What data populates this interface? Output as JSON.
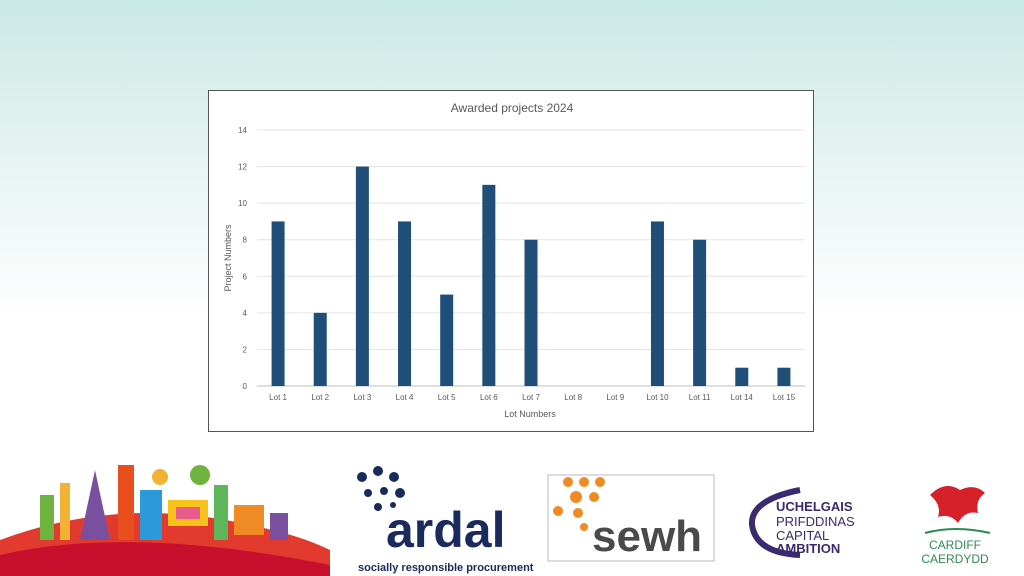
{
  "chart_data": {
    "type": "bar",
    "title": "Awarded projects 2024",
    "xlabel": "Lot Numbers",
    "ylabel": "Project Numbers",
    "categories": [
      "Lot  1",
      "Lot  2",
      "Lot  3",
      "Lot  4",
      "Lot  5",
      "Lot  6",
      "Lot 7",
      "Lot  8",
      "Lot  9",
      "Lot 10",
      "Lot 11",
      "Lot 14",
      "Lot 15"
    ],
    "values": [
      9,
      4,
      12,
      9,
      5,
      11,
      8,
      0,
      0,
      9,
      8,
      1,
      1
    ],
    "ylim": [
      0,
      14
    ],
    "yticks": [
      0,
      2,
      4,
      6,
      8,
      10,
      12,
      14
    ],
    "grid": true,
    "bar_color": "#1f4e79"
  },
  "logos": {
    "ardal_name": "ardal",
    "ardal_tagline": "socially responsible procurement",
    "sewh_name": "sewh",
    "ccr_line1": "UCHELGAIS",
    "ccr_line2": "PRIFDDINAS",
    "ccr_line3": "CAPITAL",
    "ccr_line4": "AMBITION",
    "cardiff_line1": "CARDIFF",
    "cardiff_line2": "CAERDYDD"
  },
  "colors": {
    "ardal_navy": "#1b2a5c",
    "sewh_orange": "#f08a24",
    "ccr_purple": "#3a2a6e",
    "cardiff_red": "#d6202a",
    "cardiff_green": "#2e8b57"
  }
}
